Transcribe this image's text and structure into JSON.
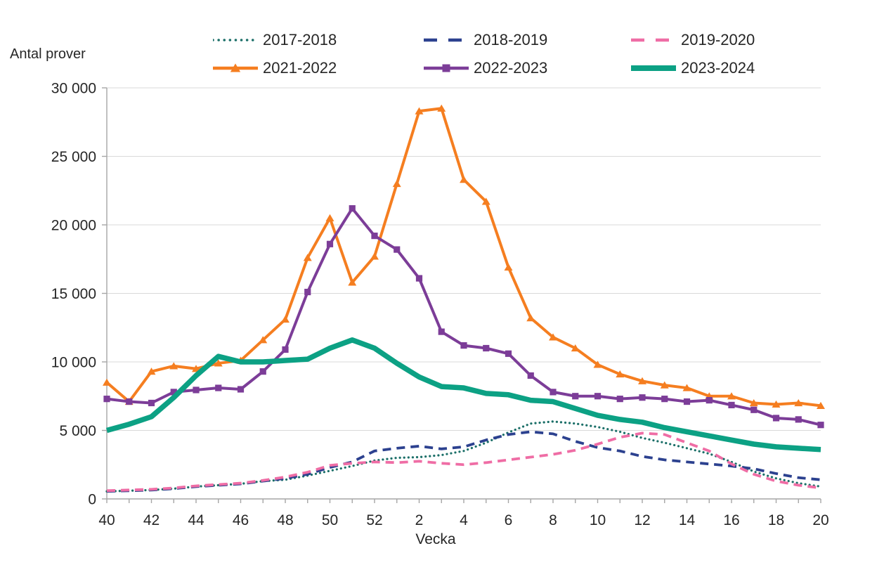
{
  "chart_data": {
    "type": "line",
    "title": "",
    "ylabel": "Antal prover",
    "xlabel": "Vecka",
    "ylim": [
      0,
      30000
    ],
    "grid": "horizontal",
    "legend_position": "top",
    "axis_color": "#a6a6a6",
    "gridline_color": "#d9d9d9",
    "text_color": "#262626",
    "y_ticks": [
      0,
      5000,
      10000,
      15000,
      20000,
      25000,
      30000
    ],
    "y_tick_labels": [
      "0",
      "5 000",
      "10 000",
      "15 000",
      "20 000",
      "25 000",
      "30 000"
    ],
    "x_categories": [
      "40",
      "41",
      "42",
      "43",
      "44",
      "45",
      "46",
      "47",
      "48",
      "49",
      "50",
      "51",
      "52",
      "1",
      "2",
      "3",
      "4",
      "5",
      "6",
      "7",
      "8",
      "9",
      "10",
      "11",
      "12",
      "13",
      "14",
      "15",
      "16",
      "17",
      "18",
      "19",
      "20"
    ],
    "x_tick_labels_shown": [
      "40",
      "42",
      "44",
      "46",
      "48",
      "50",
      "52",
      "2",
      "4",
      "6",
      "8",
      "10",
      "12",
      "14",
      "16",
      "18",
      "20"
    ],
    "series": [
      {
        "name": "2017-2018",
        "color": "#1b6f68",
        "style": "dotted",
        "marker": "none",
        "values": [
          550,
          600,
          650,
          750,
          900,
          1000,
          1100,
          1300,
          1400,
          1700,
          2050,
          2400,
          2800,
          3000,
          3050,
          3200,
          3500,
          4100,
          4850,
          5500,
          5650,
          5500,
          5250,
          4900,
          4450,
          4100,
          3700,
          3300,
          2700,
          2000,
          1500,
          1150,
          900
        ]
      },
      {
        "name": "2018-2019",
        "color": "#2c418f",
        "style": "dashed",
        "marker": "none",
        "values": [
          550,
          600,
          650,
          750,
          900,
          1000,
          1100,
          1300,
          1500,
          1800,
          2300,
          2700,
          3500,
          3700,
          3850,
          3650,
          3800,
          4300,
          4700,
          4900,
          4750,
          4200,
          3750,
          3500,
          3100,
          2850,
          2700,
          2550,
          2400,
          2200,
          1850,
          1550,
          1400
        ]
      },
      {
        "name": "2019-2020",
        "color": "#ef6da5",
        "style": "dashed",
        "marker": "none",
        "values": [
          600,
          650,
          700,
          800,
          950,
          1050,
          1150,
          1350,
          1600,
          1950,
          2450,
          2600,
          2700,
          2650,
          2750,
          2600,
          2500,
          2650,
          2850,
          3050,
          3250,
          3550,
          4000,
          4500,
          4800,
          4700,
          4100,
          3500,
          2550,
          1800,
          1300,
          1000,
          800
        ]
      },
      {
        "name": "2021-2022",
        "color": "#f57e20",
        "style": "solid",
        "marker": "triangle",
        "values": [
          8500,
          7100,
          9300,
          9700,
          9500,
          9900,
          10100,
          11600,
          13100,
          17600,
          20500,
          15800,
          17700,
          23000,
          28300,
          28500,
          23300,
          21700,
          16900,
          13200,
          11800,
          11000,
          9800,
          9100,
          8600,
          8300,
          8100,
          7500,
          7500,
          7000,
          6900,
          7000,
          6800
        ]
      },
      {
        "name": "2022-2023",
        "color": "#7c3d98",
        "style": "solid",
        "marker": "square",
        "values": [
          7300,
          7100,
          7000,
          7800,
          7950,
          8100,
          8000,
          9300,
          10900,
          15100,
          18600,
          21200,
          19200,
          18200,
          16100,
          12200,
          11200,
          11000,
          10600,
          9000,
          7800,
          7500,
          7500,
          7300,
          7400,
          7300,
          7100,
          7200,
          6850,
          6500,
          5900,
          5800,
          5400
        ]
      },
      {
        "name": "2023-2024",
        "color": "#0ca184",
        "style": "solid-thick",
        "marker": "none",
        "values": [
          5000,
          5450,
          6000,
          7400,
          9000,
          10400,
          10000,
          10000,
          10100,
          10200,
          11000,
          11600,
          11000,
          9900,
          8900,
          8200,
          8100,
          7700,
          7600,
          7200,
          7100,
          6600,
          6100,
          5800,
          5600,
          5200,
          4900,
          4600,
          4300,
          4000,
          3800,
          3700,
          3600
        ]
      }
    ]
  }
}
